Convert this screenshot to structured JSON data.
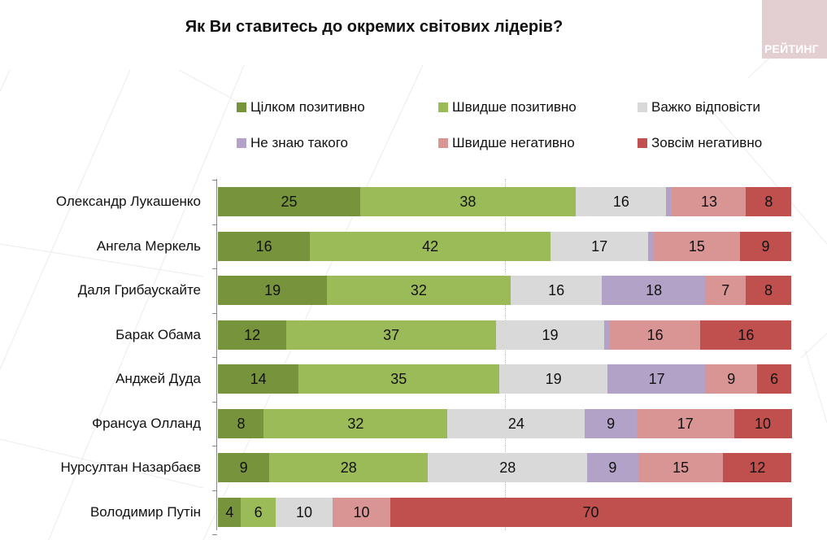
{
  "title": "Як Ви ставитесь до окремих світових лідерів?",
  "logo": {
    "text": "РЕЙТИНГ",
    "icon": "rating-logo-icon"
  },
  "colors": {
    "fully_positive": "#77933c",
    "rather_positive": "#9bbb59",
    "hard_to_say": "#d9d9d9",
    "dont_know": "#b3a2c7",
    "rather_negative": "#d99594",
    "fully_negative": "#c0504d",
    "logo_bg": "#e3cfd2"
  },
  "chart_data": {
    "type": "bar",
    "orientation": "horizontal",
    "stacked": true,
    "percent": true,
    "title": "Як Ви ставитесь до окремих світових лідерів?",
    "xlabel": "",
    "ylabel": "",
    "xlim": [
      0,
      100
    ],
    "grid": "vertical dotted line at 50",
    "legend_position": "top",
    "categories": [
      "Олександр Лукашенко",
      "Ангела Меркель",
      "Даля Грибаускайте",
      "Барак Обама",
      "Анджей Дуда",
      "Франсуа Олланд",
      "Нурсултан Назарбаєв",
      "Володимир Путін"
    ],
    "series": [
      {
        "key": "fully_positive",
        "name": "Цілком позитивно",
        "color": "#77933c",
        "values": [
          25,
          16,
          19,
          12,
          14,
          8,
          9,
          4
        ]
      },
      {
        "key": "rather_positive",
        "name": "Швидше позитивно",
        "color": "#9bbb59",
        "values": [
          38,
          42,
          32,
          37,
          35,
          32,
          28,
          6
        ]
      },
      {
        "key": "hard_to_say",
        "name": "Важко відповісти",
        "color": "#d9d9d9",
        "values": [
          16,
          17,
          16,
          19,
          19,
          24,
          28,
          10
        ]
      },
      {
        "key": "dont_know",
        "name": "Не знаю такого",
        "color": "#b3a2c7",
        "values": [
          1,
          1,
          18,
          1,
          17,
          9,
          9,
          0
        ]
      },
      {
        "key": "rather_negative",
        "name": "Швидше негативно",
        "color": "#d99594",
        "values": [
          13,
          15,
          7,
          16,
          9,
          17,
          15,
          10
        ]
      },
      {
        "key": "fully_negative",
        "name": "Зовсім негативно",
        "color": "#c0504d",
        "values": [
          8,
          9,
          8,
          16,
          6,
          10,
          12,
          70
        ]
      }
    ],
    "labels_shown_min": 2
  }
}
